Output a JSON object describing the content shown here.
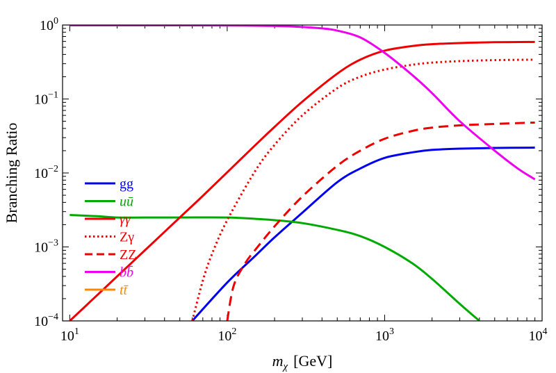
{
  "chart_data": {
    "type": "line",
    "xlabel": "m_χ [GeV]",
    "xlabel_main": "m",
    "xlabel_sub": "χ",
    "xlabel_unit": "[GeV]",
    "ylabel": "Branching Ratio",
    "x_scale": "log",
    "y_scale": "log",
    "xlim": [
      9,
      10000
    ],
    "ylim": [
      0.0001,
      1
    ],
    "x_ticks": [
      {
        "value": 10,
        "base": "10",
        "exp": "1"
      },
      {
        "value": 100,
        "base": "10",
        "exp": "2"
      },
      {
        "value": 1000,
        "base": "10",
        "exp": "3"
      },
      {
        "value": 10000,
        "base": "10",
        "exp": "4"
      }
    ],
    "y_ticks": [
      {
        "value": 1,
        "base": "10",
        "exp": "0"
      },
      {
        "value": 0.1,
        "base": "10",
        "exp": "−1"
      },
      {
        "value": 0.01,
        "base": "10",
        "exp": "−2"
      },
      {
        "value": 0.001,
        "base": "10",
        "exp": "−3"
      },
      {
        "value": 0.0001,
        "base": "10",
        "exp": "−4"
      }
    ],
    "legend_position": "left",
    "series": [
      {
        "name": "gg",
        "label": "gg",
        "color": "#0000ee",
        "dash": "solid",
        "italic": false,
        "x": [
          60,
          100,
          150,
          200,
          300,
          500,
          700,
          1000,
          1500,
          2000,
          3000,
          5000,
          9000
        ],
        "y": [
          0.0001,
          0.00033,
          0.00075,
          0.00135,
          0.0029,
          0.0075,
          0.0115,
          0.016,
          0.019,
          0.0205,
          0.0213,
          0.0218,
          0.022
        ]
      },
      {
        "name": "uubar",
        "label": "uū",
        "color": "#00aa00",
        "dash": "solid",
        "italic": true,
        "x": [
          10,
          15,
          20,
          30,
          50,
          100,
          150,
          200,
          300,
          500,
          700,
          1000,
          1500,
          2000,
          3000,
          4000
        ],
        "y": [
          0.0027,
          0.0026,
          0.0025,
          0.0025,
          0.0025,
          0.0025,
          0.0024,
          0.0023,
          0.0021,
          0.0017,
          0.0014,
          0.001,
          0.0006,
          0.00037,
          0.00017,
          0.0001
        ]
      },
      {
        "name": "gammagamma",
        "label": "γγ",
        "color": "#ee0000",
        "dash": "solid",
        "italic": true,
        "x": [
          10,
          20,
          30,
          50,
          70,
          100,
          150,
          200,
          300,
          500,
          700,
          1000,
          1500,
          2000,
          3000,
          5000,
          9000
        ],
        "y": [
          0.0001,
          0.0004,
          0.0009,
          0.0025,
          0.0049,
          0.0102,
          0.0235,
          0.042,
          0.092,
          0.22,
          0.34,
          0.45,
          0.52,
          0.55,
          0.57,
          0.585,
          0.59
        ]
      },
      {
        "name": "Zgamma",
        "label": "Zγ",
        "color": "#ee0000",
        "dash": "dotted",
        "italic": false,
        "x": [
          60,
          70,
          80,
          100,
          150,
          200,
          300,
          500,
          700,
          1000,
          1500,
          2000,
          3000,
          5000,
          9000
        ],
        "y": [
          0.0001,
          0.00035,
          0.0008,
          0.0023,
          0.0105,
          0.024,
          0.06,
          0.14,
          0.2,
          0.25,
          0.29,
          0.31,
          0.325,
          0.335,
          0.34
        ]
      },
      {
        "name": "ZZ",
        "label": "ZZ",
        "color": "#ee0000",
        "dash": "dashed",
        "italic": false,
        "x": [
          100,
          110,
          130,
          150,
          200,
          300,
          500,
          700,
          1000,
          1500,
          2000,
          3000,
          5000,
          9000
        ],
        "y": [
          0.0001,
          0.0003,
          0.0006,
          0.0009,
          0.0019,
          0.0048,
          0.0125,
          0.02,
          0.029,
          0.037,
          0.041,
          0.044,
          0.046,
          0.048
        ]
      },
      {
        "name": "bbbar",
        "label": "bb̄",
        "color": "#ee00ee",
        "dash": "solid",
        "italic": true,
        "x": [
          10,
          50,
          100,
          200,
          300,
          400,
          500,
          700,
          1000,
          1500,
          2000,
          3000,
          5000,
          7000,
          9000
        ],
        "y": [
          0.99,
          0.99,
          0.985,
          0.97,
          0.94,
          0.9,
          0.84,
          0.68,
          0.42,
          0.21,
          0.12,
          0.05,
          0.02,
          0.0115,
          0.0082
        ]
      },
      {
        "name": "ttbar",
        "label": "tt̄",
        "color": "#ff8800",
        "dash": "solid",
        "italic": true,
        "x": [],
        "y": []
      }
    ]
  }
}
